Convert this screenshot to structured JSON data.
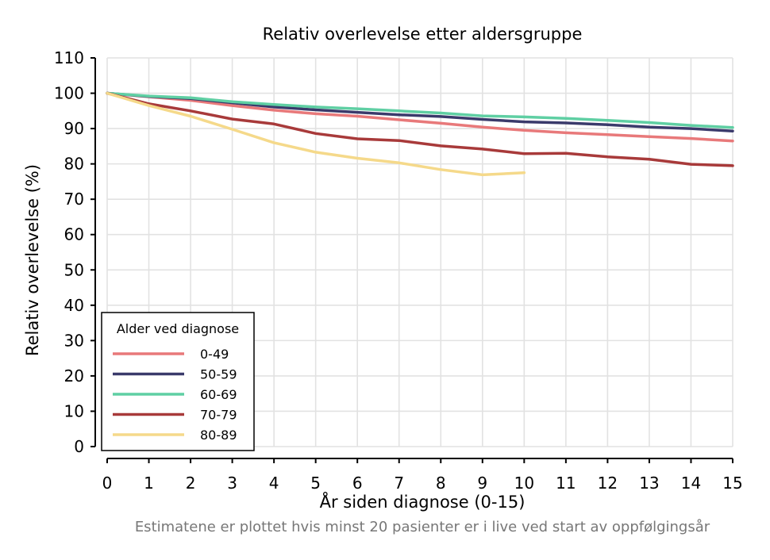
{
  "chart_data": {
    "type": "line",
    "title": "Relativ overlevelse etter aldersgruppe",
    "xlabel": "År siden diagnose (0-15)",
    "ylabel": "Relativ overlevelse (%)",
    "xlim": [
      0,
      15
    ],
    "ylim": [
      0,
      110
    ],
    "x_ticks": [
      0,
      1,
      2,
      3,
      4,
      5,
      6,
      7,
      8,
      9,
      10,
      11,
      12,
      13,
      14,
      15
    ],
    "y_ticks": [
      0,
      10,
      20,
      30,
      40,
      50,
      60,
      70,
      80,
      90,
      100,
      110
    ],
    "grid": true,
    "legend": {
      "title": "Alder ved diagnose",
      "placement": "bottom-left"
    },
    "series": [
      {
        "name": "0-49",
        "color": "#e8797a",
        "x": [
          0,
          1,
          2,
          3,
          4,
          5,
          6,
          7,
          8,
          9,
          10,
          11,
          12,
          13,
          14,
          15
        ],
        "y": [
          100,
          99.0,
          98.0,
          96.5,
          95.2,
          94.2,
          93.5,
          92.5,
          91.5,
          90.4,
          89.5,
          88.8,
          88.3,
          87.7,
          87.2,
          86.5
        ]
      },
      {
        "name": "50-59",
        "color": "#3a3a6b",
        "x": [
          0,
          1,
          2,
          3,
          4,
          5,
          6,
          7,
          8,
          9,
          10,
          11,
          12,
          13,
          14,
          15
        ],
        "y": [
          100,
          99.1,
          98.5,
          97.3,
          96.1,
          95.3,
          94.6,
          93.9,
          93.4,
          92.6,
          91.9,
          91.6,
          91.1,
          90.4,
          90.0,
          89.3
        ]
      },
      {
        "name": "60-69",
        "color": "#5fcfa3",
        "x": [
          0,
          1,
          2,
          3,
          4,
          5,
          6,
          7,
          8,
          9,
          10,
          11,
          12,
          13,
          14,
          15
        ],
        "y": [
          100,
          99.2,
          98.7,
          97.6,
          96.8,
          96.1,
          95.6,
          95.0,
          94.4,
          93.6,
          93.3,
          92.9,
          92.3,
          91.7,
          90.9,
          90.3
        ]
      },
      {
        "name": "70-79",
        "color": "#a83a3a",
        "x": [
          0,
          1,
          2,
          3,
          4,
          5,
          6,
          7,
          8,
          9,
          10,
          11,
          12,
          13,
          14,
          15
        ],
        "y": [
          100,
          97.0,
          95.0,
          92.7,
          91.3,
          88.6,
          87.1,
          86.6,
          85.1,
          84.2,
          82.9,
          83.0,
          82.0,
          81.3,
          79.9,
          79.5
        ]
      },
      {
        "name": "80-89",
        "color": "#f5d98a",
        "x": [
          0,
          1,
          2,
          3,
          4,
          5,
          6,
          7,
          8,
          9,
          10
        ],
        "y": [
          100,
          96.5,
          93.5,
          89.8,
          86.0,
          83.3,
          81.6,
          80.3,
          78.4,
          76.9,
          77.5
        ]
      }
    ]
  },
  "footnote": "Estimatene er plottet hvis minst 20 pasienter er i live ved start av oppfølgingsår"
}
